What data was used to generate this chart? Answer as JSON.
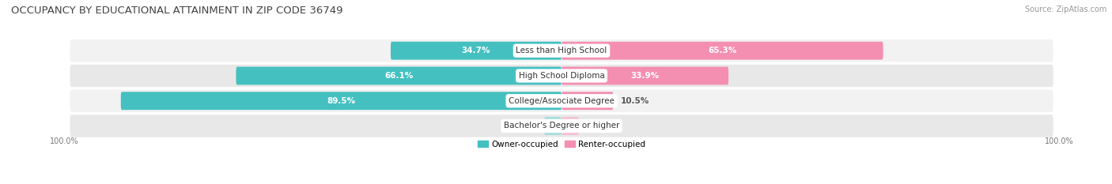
{
  "title": "OCCUPANCY BY EDUCATIONAL ATTAINMENT IN ZIP CODE 36749",
  "source": "Source: ZipAtlas.com",
  "categories": [
    "Less than High School",
    "High School Diploma",
    "College/Associate Degree",
    "Bachelor's Degree or higher"
  ],
  "owner_pct": [
    34.7,
    66.1,
    89.5,
    0.0
  ],
  "renter_pct": [
    65.3,
    33.9,
    10.5,
    0.0
  ],
  "owner_color": "#45c0c0",
  "renter_color": "#f48fb1",
  "owner_color_light": "#a8dede",
  "renter_color_light": "#f9c0d4",
  "row_bg_odd": "#f2f2f2",
  "row_bg_even": "#e8e8e8",
  "title_fontsize": 9.5,
  "source_fontsize": 7,
  "label_fontsize": 7.5,
  "cat_fontsize": 7.5,
  "bar_height": 0.72,
  "figsize": [
    14.06,
    2.33
  ],
  "dpi": 100,
  "legend_labels": [
    "Owner-occupied",
    "Renter-occupied"
  ],
  "axis_label": "100.0%",
  "xlim": 100,
  "stub_pct": 3.5
}
